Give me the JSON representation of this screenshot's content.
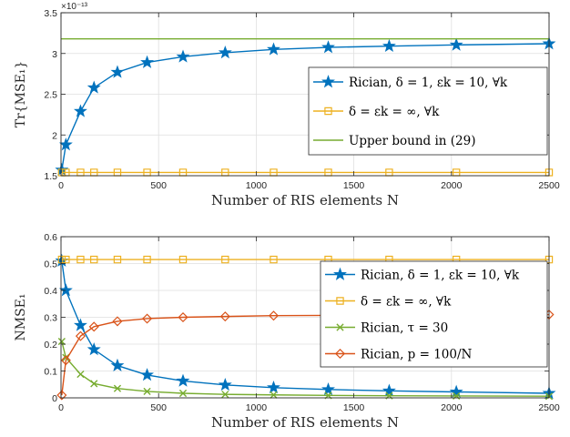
{
  "chart_data": [
    {
      "type": "line",
      "ylabel": "Tr{MSE₁}",
      "xlabel": "Number of RIS elements N",
      "y_exponent": "×10⁻¹³",
      "xlim": [
        0,
        2500
      ],
      "ylim": [
        1.5,
        3.5
      ],
      "xticks": [
        "0",
        "500",
        "1000",
        "1500",
        "2000",
        "2500"
      ],
      "yticks": [
        "1.5",
        "2",
        "2.5",
        "3",
        "3.5"
      ],
      "grid": true,
      "legend_position": "center-right",
      "series": [
        {
          "name": "Rician, δ = 1, εk = 10, ∀k",
          "color": "#0072BD",
          "marker": "star",
          "x": [
            4,
            25,
            100,
            169,
            289,
            441,
            625,
            841,
            1089,
            1369,
            1681,
            2025,
            2500
          ],
          "y": [
            1.57,
            1.88,
            2.29,
            2.58,
            2.77,
            2.89,
            2.96,
            3.01,
            3.05,
            3.075,
            3.09,
            3.105,
            3.12
          ]
        },
        {
          "name": "δ = εk = ∞, ∀k",
          "color": "#EDB120",
          "marker": "square",
          "x": [
            4,
            25,
            100,
            169,
            289,
            441,
            625,
            841,
            1089,
            1369,
            1681,
            2025,
            2500
          ],
          "y": [
            1.54,
            1.54,
            1.54,
            1.54,
            1.54,
            1.54,
            1.54,
            1.54,
            1.54,
            1.54,
            1.54,
            1.54,
            1.54
          ]
        },
        {
          "name": "Upper bound in (29)",
          "color": "#77AC30",
          "marker": "none",
          "x": [
            0,
            2500
          ],
          "y": [
            3.18,
            3.18
          ]
        }
      ]
    },
    {
      "type": "line",
      "ylabel": "NMSE₁",
      "xlabel": "Number of RIS elements N",
      "xlim": [
        0,
        2500
      ],
      "ylim": [
        0,
        0.6
      ],
      "xticks": [
        "0",
        "500",
        "1000",
        "1500",
        "2000",
        "2500"
      ],
      "yticks": [
        "0",
        "0.1",
        "0.2",
        "0.3",
        "0.4",
        "0.5",
        "0.6"
      ],
      "grid": true,
      "legend_position": "center-right",
      "series": [
        {
          "name": "Rician, δ = 1, εk = 10, ∀k",
          "color": "#0072BD",
          "marker": "star",
          "x": [
            4,
            25,
            100,
            169,
            289,
            441,
            625,
            841,
            1089,
            1369,
            1681,
            2025,
            2500
          ],
          "y": [
            0.51,
            0.4,
            0.27,
            0.18,
            0.12,
            0.085,
            0.063,
            0.048,
            0.038,
            0.031,
            0.026,
            0.022,
            0.017
          ]
        },
        {
          "name": "δ = εk = ∞, ∀k",
          "color": "#EDB120",
          "marker": "square",
          "x": [
            4,
            25,
            100,
            169,
            289,
            441,
            625,
            841,
            1089,
            1369,
            1681,
            2025,
            2500
          ],
          "y": [
            0.515,
            0.515,
            0.515,
            0.515,
            0.515,
            0.515,
            0.515,
            0.515,
            0.515,
            0.515,
            0.515,
            0.515,
            0.515
          ]
        },
        {
          "name": "Rician, τ = 30",
          "color": "#77AC30",
          "marker": "x",
          "x": [
            4,
            25,
            100,
            169,
            289,
            441,
            625,
            841,
            1089,
            1369,
            1681,
            2025,
            2500
          ],
          "y": [
            0.21,
            0.15,
            0.088,
            0.053,
            0.035,
            0.024,
            0.017,
            0.013,
            0.011,
            0.009,
            0.008,
            0.007,
            0.006
          ]
        },
        {
          "name": "Rician, p = 100/N",
          "color": "#D95319",
          "marker": "diamond",
          "x": [
            4,
            25,
            100,
            169,
            289,
            441,
            625,
            841,
            1089,
            1369,
            1681,
            2025,
            2500
          ],
          "y": [
            0.01,
            0.14,
            0.23,
            0.265,
            0.285,
            0.295,
            0.3,
            0.303,
            0.306,
            0.307,
            0.308,
            0.309,
            0.31
          ]
        }
      ]
    }
  ]
}
